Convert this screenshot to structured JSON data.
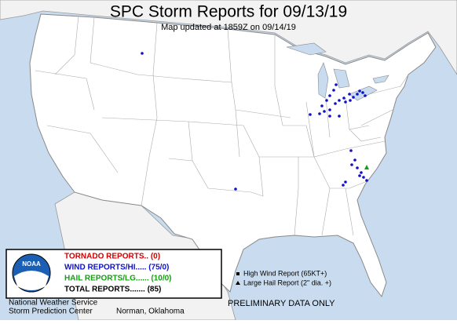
{
  "header": {
    "title": "SPC Storm Reports for 09/13/19",
    "subtitle": "Map updated at 1859Z on 09/14/19"
  },
  "legend": {
    "logo": "NOAA",
    "entries": [
      "TORNADO REPORTS.. (0)",
      "WIND REPORTS/HI..... (75/0)",
      "HAIL REPORTS/LG...... (10/0)",
      "TOTAL REPORTS....... (85)"
    ],
    "symbols": [
      "High Wind Report (65KT+)",
      "Large Hail Report (2\" dia. +)"
    ]
  },
  "footer": {
    "agency": "National Weather Service",
    "center": "Storm Prediction Center",
    "location": "Norman, Oklahoma",
    "notice": "PRELIMINARY DATA ONLY"
  }
}
